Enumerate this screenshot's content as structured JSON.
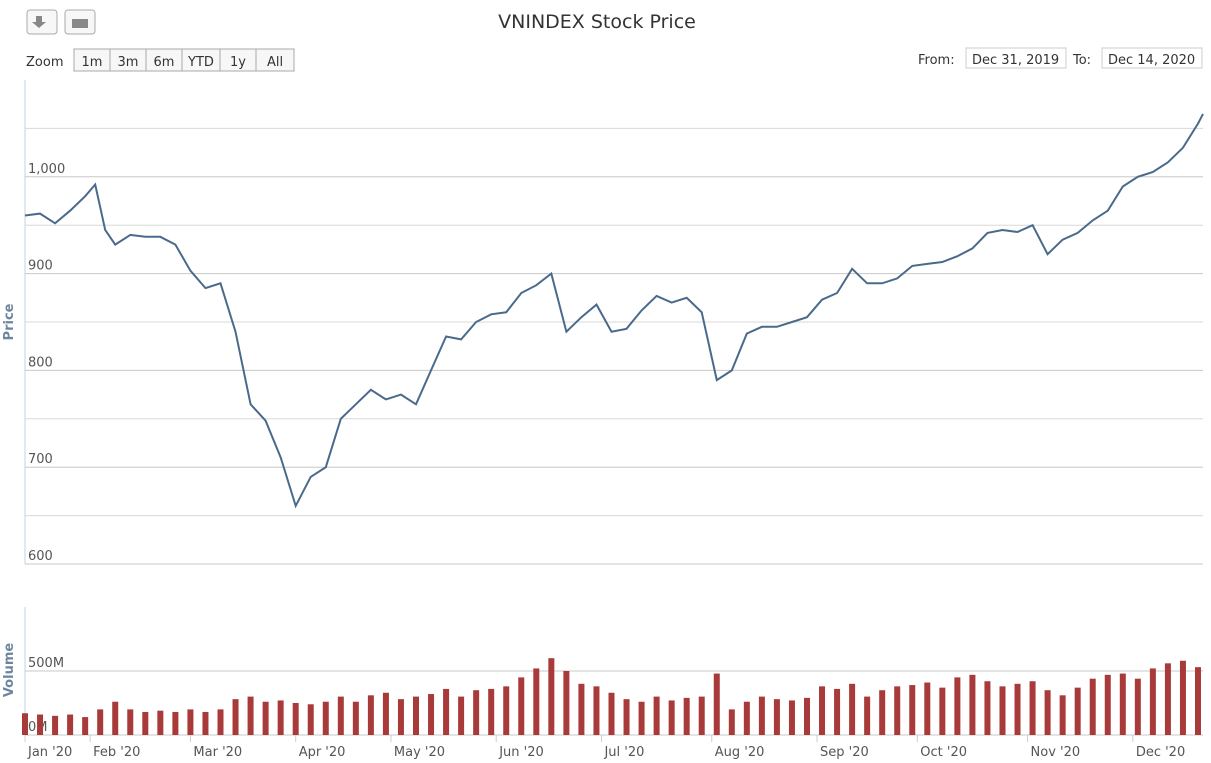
{
  "toolbar": {
    "zoom_label": "Zoom",
    "zoom_buttons": [
      "1m",
      "3m",
      "6m",
      "YTD",
      "1y",
      "All"
    ],
    "from_label": "From:",
    "from_value": "Dec 31, 2019",
    "to_label": "To:",
    "to_value": "Dec 14, 2020"
  },
  "chart_data": [
    {
      "type": "line",
      "title": "VNINDEX Stock Price",
      "y_label": "Price",
      "color": "#4a6a8c",
      "grid": true,
      "xlim": [
        0,
        235
      ],
      "ylim": [
        600,
        1100
      ],
      "yticks": [
        600,
        700,
        800,
        900,
        {
          "value": 1000,
          "label": "1,000"
        }
      ],
      "minor_yticks": [
        650,
        750,
        850,
        950,
        1050
      ],
      "x": [
        0,
        3,
        6,
        9,
        12,
        14,
        16,
        18,
        21,
        24,
        27,
        30,
        33,
        36,
        39,
        42,
        45,
        48,
        51,
        54,
        57,
        60,
        63,
        66,
        69,
        72,
        75,
        78,
        81,
        84,
        87,
        90,
        93,
        96,
        99,
        102,
        105,
        108,
        111,
        114,
        117,
        120,
        123,
        126,
        129,
        132,
        135,
        138,
        141,
        144,
        147,
        150,
        153,
        156,
        159,
        162,
        165,
        168,
        171,
        174,
        177,
        180,
        183,
        186,
        189,
        192,
        195,
        198,
        201,
        204,
        207,
        210,
        213,
        216,
        219,
        222,
        225,
        228,
        231,
        234,
        235
      ],
      "values": [
        960,
        962,
        952,
        965,
        980,
        992,
        945,
        930,
        940,
        938,
        938,
        930,
        903,
        885,
        890,
        840,
        765,
        748,
        710,
        660,
        690,
        700,
        750,
        765,
        780,
        770,
        775,
        765,
        800,
        835,
        832,
        850,
        858,
        860,
        880,
        888,
        900,
        840,
        855,
        868,
        840,
        843,
        862,
        877,
        870,
        875,
        860,
        790,
        800,
        838,
        845,
        845,
        850,
        855,
        873,
        880,
        905,
        890,
        890,
        895,
        908,
        910,
        912,
        918,
        926,
        942,
        945,
        943,
        950,
        920,
        935,
        942,
        955,
        965,
        990,
        1000,
        1005,
        1015,
        1030,
        1055,
        1065
      ]
    },
    {
      "type": "bar",
      "y_label": "Volume",
      "color": "#a83a3a",
      "grid": true,
      "xlim": [
        0,
        235
      ],
      "ylim": [
        0,
        1000
      ],
      "yticks": [
        {
          "value": 0,
          "label": "0M"
        },
        {
          "value": 500,
          "label": "500M"
        }
      ],
      "xticks": [
        {
          "value": 0,
          "label": "Jan '20"
        },
        {
          "value": 13,
          "label": "Feb '20"
        },
        {
          "value": 33,
          "label": "Mar '20"
        },
        {
          "value": 54,
          "label": "Apr '20"
        },
        {
          "value": 73,
          "label": "May '20"
        },
        {
          "value": 94,
          "label": "Jun '20"
        },
        {
          "value": 115,
          "label": "Jul '20"
        },
        {
          "value": 137,
          "label": "Aug '20"
        },
        {
          "value": 158,
          "label": "Sep '20"
        },
        {
          "value": 178,
          "label": "Oct '20"
        },
        {
          "value": 200,
          "label": "Nov '20"
        },
        {
          "value": 221,
          "label": "Dec '20"
        }
      ],
      "x": [
        0,
        3,
        6,
        9,
        12,
        15,
        18,
        21,
        24,
        27,
        30,
        33,
        36,
        39,
        42,
        45,
        48,
        51,
        54,
        57,
        60,
        63,
        66,
        69,
        72,
        75,
        78,
        81,
        84,
        87,
        90,
        93,
        96,
        99,
        102,
        105,
        108,
        111,
        114,
        117,
        120,
        123,
        126,
        129,
        132,
        135,
        138,
        141,
        144,
        147,
        150,
        153,
        156,
        159,
        162,
        165,
        168,
        171,
        174,
        177,
        180,
        183,
        186,
        189,
        192,
        195,
        198,
        201,
        204,
        207,
        210,
        213,
        216,
        219,
        222,
        225,
        228,
        231,
        234
      ],
      "values": [
        170,
        160,
        150,
        160,
        140,
        200,
        260,
        200,
        180,
        190,
        180,
        200,
        180,
        200,
        280,
        300,
        260,
        270,
        250,
        240,
        260,
        300,
        260,
        310,
        330,
        280,
        300,
        320,
        360,
        300,
        350,
        360,
        380,
        450,
        520,
        600,
        500,
        400,
        380,
        330,
        280,
        260,
        300,
        270,
        290,
        300,
        480,
        200,
        260,
        300,
        280,
        270,
        290,
        380,
        360,
        400,
        300,
        350,
        380,
        390,
        410,
        370,
        450,
        470,
        420,
        380,
        400,
        420,
        350,
        310,
        370,
        440,
        470,
        480,
        440,
        520,
        560,
        580,
        530
      ]
    }
  ]
}
